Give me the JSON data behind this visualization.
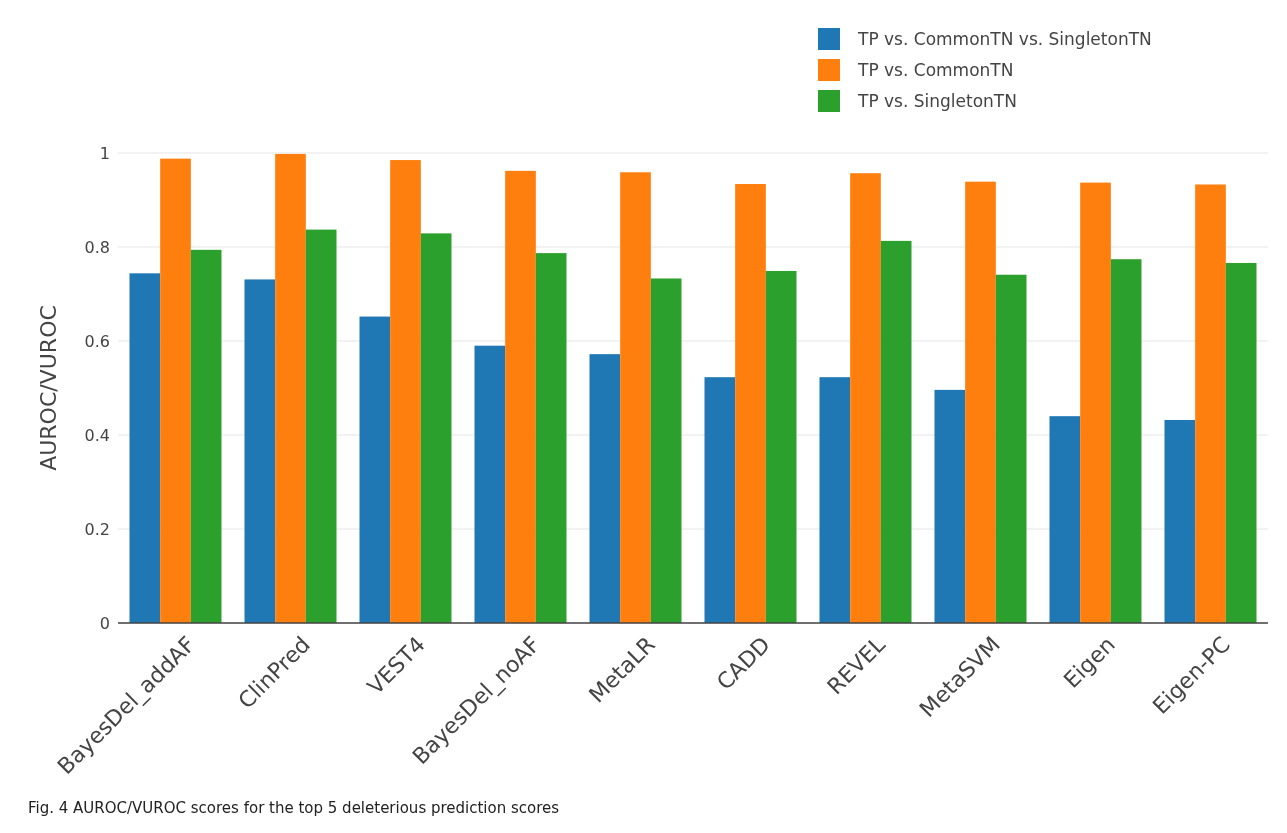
{
  "chart_data": {
    "type": "bar",
    "ylabel": "AUROC/VUROC",
    "categories": [
      "BayesDel_addAF",
      "ClinPred",
      "VEST4",
      "BayesDel_noAF",
      "MetaLR",
      "CADD",
      "REVEL",
      "MetaSVM",
      "Eigen",
      "Eigen-PC"
    ],
    "series": [
      {
        "name": "TP vs. CommonTN vs. SingletonTN",
        "color": "#1f77b4",
        "values": [
          0.744,
          0.731,
          0.652,
          0.59,
          0.572,
          0.523,
          0.523,
          0.496,
          0.44,
          0.432
        ]
      },
      {
        "name": "TP vs. CommonTN",
        "color": "#ff7f0e",
        "values": [
          0.988,
          0.998,
          0.985,
          0.962,
          0.959,
          0.934,
          0.957,
          0.939,
          0.937,
          0.933
        ]
      },
      {
        "name": "TP vs. SingletonTN",
        "color": "#2ca02c",
        "values": [
          0.794,
          0.837,
          0.829,
          0.787,
          0.733,
          0.749,
          0.813,
          0.741,
          0.774,
          0.766
        ]
      }
    ],
    "ylim": [
      0,
      1
    ],
    "yticks": [
      0,
      0.2,
      0.4,
      0.6,
      0.8,
      1
    ],
    "grid": "y",
    "legend": "top right",
    "annotations": [
      "Fig. 4 AUROC/VUROC scores for the top 5 deleterious prediction scores"
    ]
  }
}
